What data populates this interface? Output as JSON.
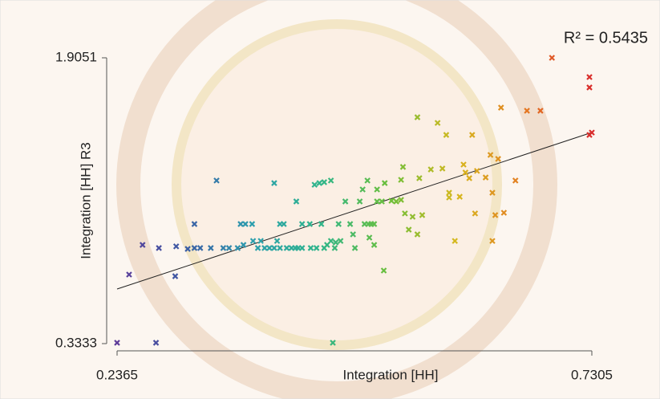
{
  "chart_data": {
    "type": "scatter",
    "x_label": "Integration [HH]",
    "y_label": "Integration [HH] R3",
    "annotation": "R² = 0.5435",
    "xlim": [
      0.2365,
      0.7305
    ],
    "ylim": [
      0.3333,
      1.9051
    ],
    "xticks": [
      0.2365,
      0.7305
    ],
    "yticks": [
      0.3333,
      1.9051
    ],
    "grid": false,
    "colormap": [
      "#5e3c99",
      "#3b5ba5",
      "#2c9fae",
      "#2fb58a",
      "#6bbf3a",
      "#d6b81e",
      "#e47a22",
      "#d92b2b"
    ],
    "trendline": {
      "x": [
        0.2365,
        0.7305
      ],
      "y": [
        0.6335,
        1.4945
      ],
      "color": "#222222"
    },
    "x": [
      0.2365,
      0.277,
      0.461,
      0.249,
      0.297,
      0.263,
      0.28,
      0.298,
      0.31,
      0.317,
      0.317,
      0.323,
      0.334,
      0.34,
      0.347,
      0.353,
      0.362,
      0.365,
      0.37,
      0.377,
      0.368,
      0.378,
      0.383,
      0.386,
      0.39,
      0.395,
      0.4,
      0.4,
      0.403,
      0.406,
      0.41,
      0.406,
      0.413,
      0.418,
      0.422,
      0.425,
      0.429,
      0.423,
      0.429,
      0.437,
      0.442,
      0.447,
      0.452,
      0.459,
      0.438,
      0.444,
      0.449,
      0.452,
      0.455,
      0.459,
      0.464,
      0.463,
      0.467,
      0.469,
      0.474,
      0.479,
      0.482,
      0.484,
      0.489,
      0.494,
      0.498,
      0.501,
      0.504,
      0.492,
      0.497,
      0.499,
      0.504,
      0.507,
      0.512,
      0.522,
      0.527,
      0.532,
      0.536,
      0.54,
      0.544,
      0.549,
      0.554,
      0.514,
      0.549,
      0.57,
      0.579,
      0.582,
      0.582,
      0.588,
      0.593,
      0.597,
      0.599,
      0.603,
      0.606,
      0.609,
      0.611,
      0.62,
      0.625,
      0.627,
      0.63,
      0.627,
      0.633,
      0.639,
      0.636,
      0.651,
      0.663,
      0.677,
      0.689,
      0.728,
      0.728,
      0.7305,
      0.728,
      0.534,
      0.575,
      0.551,
      0.563,
      0.532,
      0.515,
      0.507
    ],
    "values": [
      0.338,
      0.338,
      0.338,
      0.713,
      0.704,
      0.876,
      0.859,
      0.868,
      0.854,
      0.991,
      0.859,
      0.859,
      0.859,
      1.23,
      0.859,
      0.859,
      0.859,
      0.991,
      0.991,
      0.991,
      0.876,
      0.898,
      0.859,
      0.898,
      0.859,
      0.859,
      1.216,
      0.859,
      0.898,
      0.991,
      0.991,
      0.859,
      0.859,
      0.859,
      0.859,
      0.859,
      0.859,
      1.115,
      0.991,
      0.991,
      1.207,
      1.216,
      1.221,
      1.23,
      0.859,
      0.859,
      0.991,
      0.859,
      0.876,
      0.898,
      0.89,
      0.859,
      0.991,
      0.898,
      1.115,
      0.991,
      0.934,
      0.859,
      1.115,
      0.991,
      0.991,
      0.991,
      0.991,
      1.181,
      1.23,
      0.916,
      0.876,
      1.115,
      1.115,
      1.119,
      1.115,
      1.124,
      1.049,
      0.96,
      1.031,
      0.934,
      1.04,
      0.735,
      1.578,
      1.547,
      1.481,
      1.163,
      1.137,
      0.898,
      1.141,
      1.318,
      1.274,
      1.243,
      1.481,
      1.049,
      1.283,
      1.247,
      1.371,
      1.163,
      1.04,
      0.898,
      1.349,
      1.053,
      1.631,
      1.23,
      1.614,
      1.614,
      1.905,
      1.799,
      1.742,
      1.494,
      1.481,
      1.305,
      1.296,
      1.243,
      1.291,
      1.234,
      1.216,
      1.181
    ]
  }
}
